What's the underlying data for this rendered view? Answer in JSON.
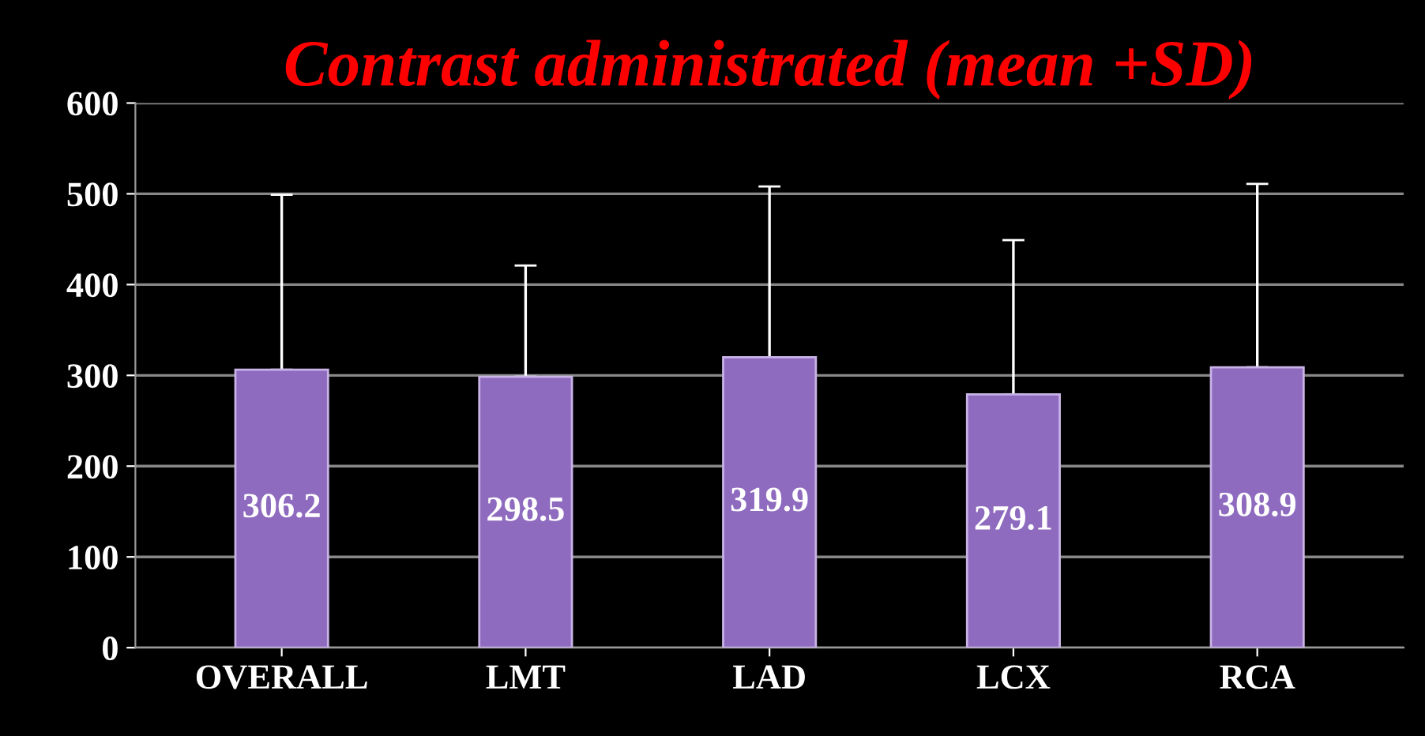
{
  "chart_data": {
    "type": "bar",
    "title": "Contrast administrated (mean +SD)",
    "categories": [
      "OVERALL",
      "LMT",
      "LAD",
      "LCX",
      "RCA"
    ],
    "values": [
      306.2,
      298.5,
      319.9,
      279.1,
      308.9
    ],
    "color": "#8e6bbf",
    "errors": [
      [
        306.2,
        499
      ],
      [
        298.5,
        421
      ],
      [
        319.9,
        508
      ],
      [
        279.1,
        449
      ],
      [
        308.9,
        511
      ]
    ],
    "data_labels": true,
    "ylim": [
      0,
      600
    ],
    "yticks": [
      0,
      100,
      200,
      300,
      400,
      500,
      600
    ],
    "grid": "y"
  }
}
